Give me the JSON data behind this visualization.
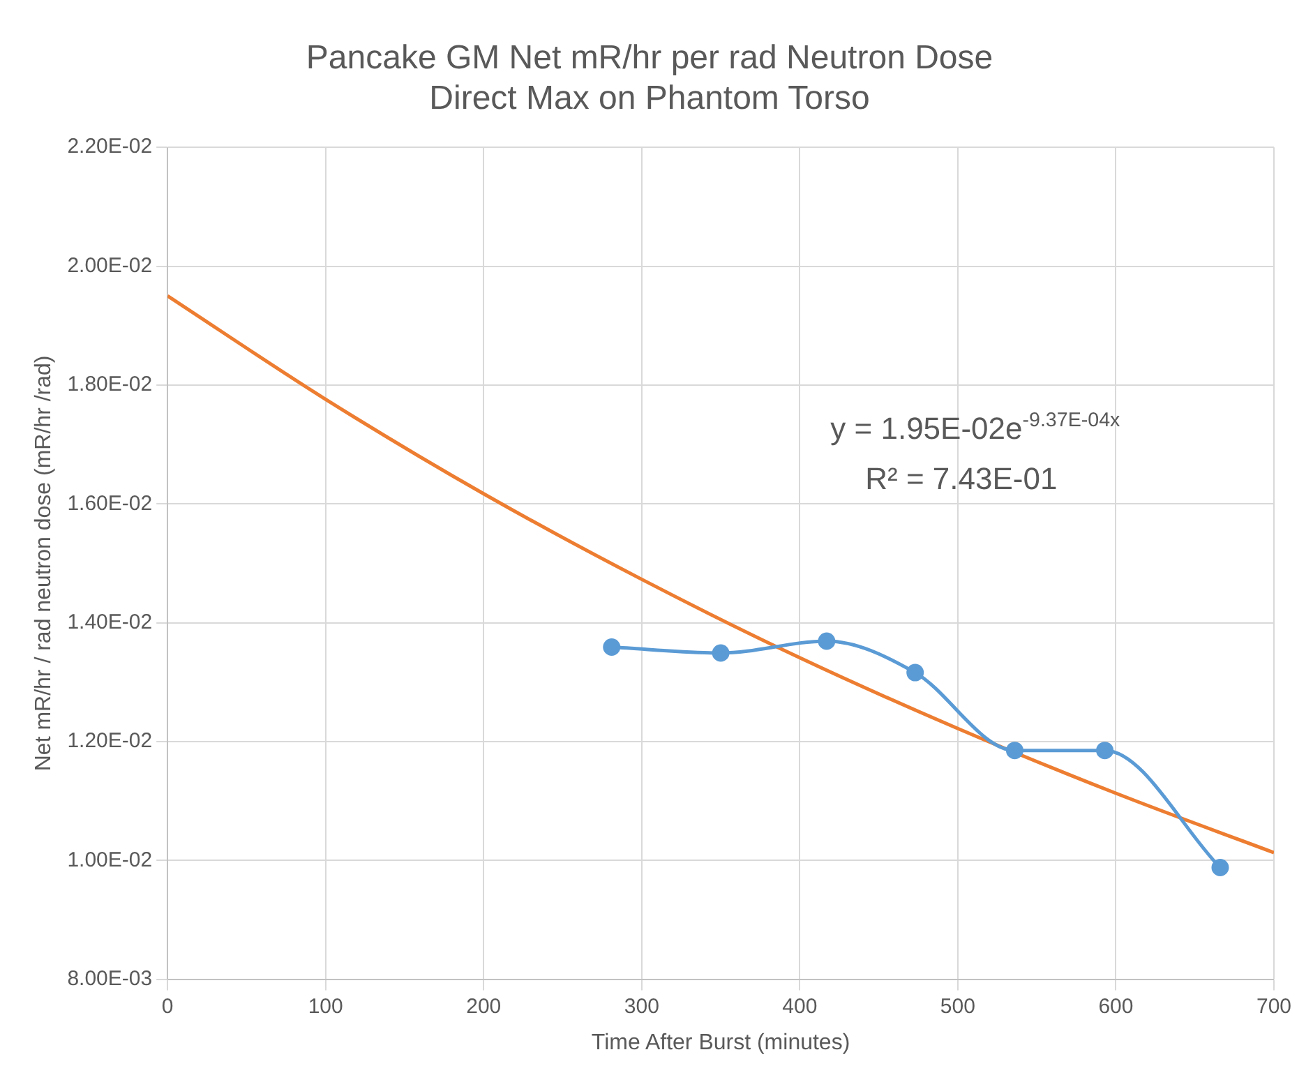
{
  "chart_data": {
    "type": "scatter",
    "title": [
      "Pancake GM Net mR/hr per rad Neutron Dose",
      "Direct Max on Phantom Torso"
    ],
    "xlabel": "Time After Burst (minutes)",
    "ylabel": "Net mR/hr / rad neutron dose (mR/hr /rad)",
    "xlim": [
      0,
      700
    ],
    "xticks": [
      0,
      100,
      200,
      300,
      400,
      500,
      600,
      700
    ],
    "ylim": [
      0.008,
      0.022
    ],
    "yticks": [
      {
        "value": 0.008,
        "label": "8.00E-03"
      },
      {
        "value": 0.01,
        "label": "1.00E-02"
      },
      {
        "value": 0.012,
        "label": "1.20E-02"
      },
      {
        "value": 0.014,
        "label": "1.40E-02"
      },
      {
        "value": 0.016,
        "label": "1.60E-02"
      },
      {
        "value": 0.018,
        "label": "1.80E-02"
      },
      {
        "value": 0.02,
        "label": "2.00E-02"
      },
      {
        "value": 0.022,
        "label": "2.20E-02"
      }
    ],
    "grid": true,
    "legend": false,
    "series": [
      {
        "type": "line",
        "color": "#5b9bd5",
        "marker": "circle",
        "x": [
          281,
          350,
          417,
          473,
          536,
          593,
          666
        ],
        "values": [
          0.01359,
          0.01349,
          0.01369,
          0.01316,
          0.01185,
          0.01185,
          0.00988
        ]
      },
      {
        "type": "line",
        "color": "#ed7d31",
        "marker": "none",
        "x": [
          0,
          100,
          200,
          300,
          400,
          500,
          600,
          700
        ],
        "values": [
          0.0195,
          0.01776,
          0.01617,
          0.01473,
          0.01341,
          0.01222,
          0.01113,
          0.01013
        ]
      }
    ],
    "annotations": [
      "y = 1.95E-02e$^{-9.37E-04x}$",
      "R² = 7.43E-01"
    ]
  }
}
